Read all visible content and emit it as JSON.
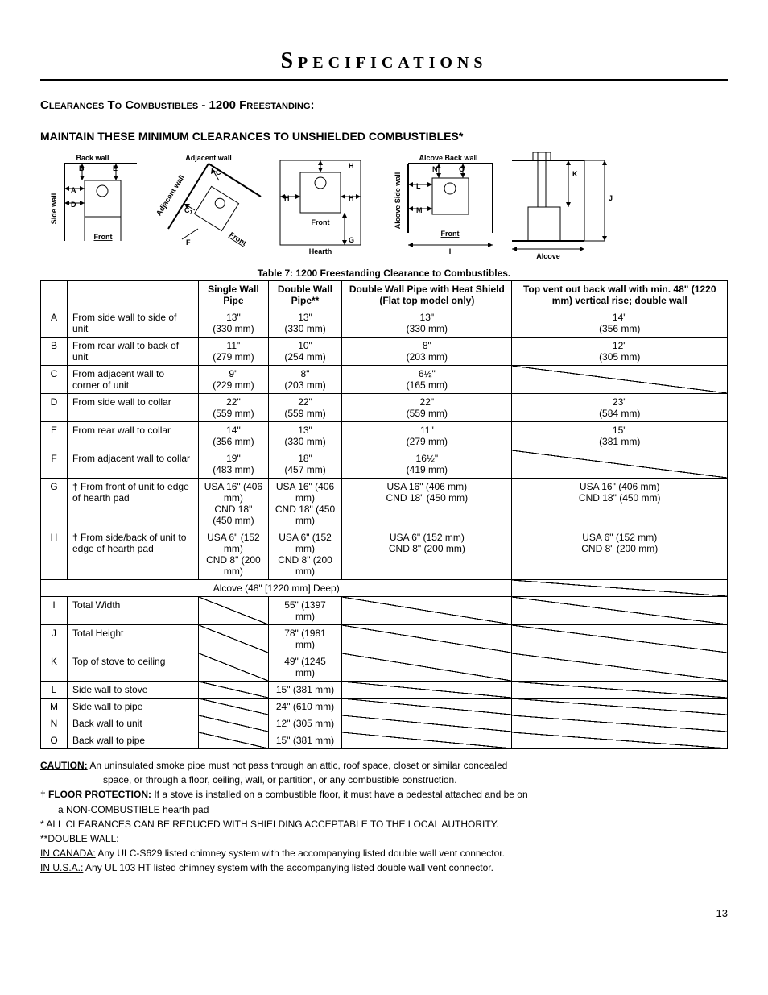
{
  "page": {
    "title": "Specifications",
    "number": "13"
  },
  "headings": {
    "section": "Clearances To Combustibles - 1200 Freestanding:",
    "sub": "MAINTAIN THESE MINIMUM CLEARANCES TO UNSHIELDED COMBUSTIBLES*"
  },
  "diagram_labels": {
    "d1": {
      "top": "Back wall",
      "side": "Side wall",
      "front": "Front",
      "A": "A",
      "B": "B",
      "D": "D",
      "E": "E"
    },
    "d2": {
      "top": "Adjacent wall",
      "adj": "Adjacent wall",
      "front": "Front",
      "C": "C",
      "C1": "C₁",
      "F": "F"
    },
    "d3": {
      "H": "H",
      "front": "Front",
      "hearth": "Hearth",
      "G": "G"
    },
    "d4": {
      "top": "Alcove Back wall",
      "side": "Alcove Side wall",
      "front": "Front",
      "N": "N",
      "O": "O",
      "L": "L",
      "M": "M",
      "I": "I"
    },
    "d5": {
      "alcove": "Alcove",
      "K": "K",
      "J": "J"
    }
  },
  "table": {
    "caption": "Table 7: 1200 Freestanding Clearance to Combustibles.",
    "headers": [
      "",
      "",
      "Single Wall Pipe",
      "Double Wall Pipe**",
      "Double Wall Pipe with Heat Shield (Flat top model only)",
      "Top vent out back wall with min. 48\" (1220 mm) vertical rise; double wall"
    ],
    "rows": [
      {
        "key": "A",
        "label": "From side wall to side of unit",
        "c": [
          "13\"\n(330 mm)",
          "13\"\n(330 mm)",
          "13\"\n(330 mm)",
          "14\"\n(356 mm)"
        ]
      },
      {
        "key": "B",
        "label": "From rear wall to back of unit",
        "c": [
          "11\"\n(279 mm)",
          "10\"\n(254 mm)",
          "8\"\n(203 mm)",
          "12\"\n(305 mm)"
        ]
      },
      {
        "key": "C",
        "label": "From adjacent wall to corner of unit",
        "c": [
          "9\"\n(229 mm)",
          "8\"\n(203 mm)",
          "6½\"\n(165 mm)",
          "DIAG"
        ]
      },
      {
        "key": "D",
        "label": "From side wall to collar",
        "c": [
          "22\"\n(559 mm)",
          "22\"\n(559 mm)",
          "22\"\n(559 mm)",
          "23\"\n(584 mm)"
        ]
      },
      {
        "key": "E",
        "label": "From rear wall to collar",
        "c": [
          "14\"\n(356 mm)",
          "13\"\n(330 mm)",
          "11\"\n(279 mm)",
          "15\"\n(381 mm)"
        ]
      },
      {
        "key": "F",
        "label": "From adjacent wall to collar",
        "c": [
          "19\"\n(483 mm)",
          "18\"\n(457 mm)",
          "16½\"\n(419 mm)",
          "DIAG"
        ]
      },
      {
        "key": "G",
        "label": "† From front of unit to edge of hearth pad",
        "c": [
          "USA 16\" (406 mm)\nCND 18\" (450 mm)",
          "USA 16\" (406 mm)\nCND 18\" (450 mm)",
          "USA 16\" (406 mm)\nCND 18\" (450 mm)",
          "USA 16\" (406 mm)\nCND 18\" (450 mm)"
        ]
      },
      {
        "key": "H",
        "label": "† From side/back of unit to edge of hearth pad",
        "c": [
          "USA 6\" (152 mm)\nCND 8\" (200 mm)",
          "USA 6\" (152 mm)\nCND 8\" (200 mm)",
          "USA 6\" (152 mm)\nCND 8\" (200 mm)",
          "USA 6\" (152 mm)\nCND 8\" (200 mm)"
        ]
      }
    ],
    "alcove_header": "Alcove (48\" [1220 mm] Deep)",
    "alcove_rows": [
      {
        "key": "I",
        "label": "Total Width",
        "c": [
          "DIAG",
          "55\" (1397 mm)",
          "DIAG",
          "DIAG"
        ]
      },
      {
        "key": "J",
        "label": "Total Height",
        "c": [
          "DIAG",
          "78\" (1981 mm)",
          "DIAG",
          "DIAG"
        ]
      },
      {
        "key": "K",
        "label": "Top of stove to ceiling",
        "c": [
          "DIAG",
          "49\" (1245 mm)",
          "DIAG",
          "DIAG"
        ]
      },
      {
        "key": "L",
        "label": "Side wall to stove",
        "c": [
          "DIAG",
          "15\" (381 mm)",
          "DIAG",
          "DIAG"
        ]
      },
      {
        "key": "M",
        "label": "Side wall to pipe",
        "c": [
          "DIAG",
          "24\" (610 mm)",
          "DIAG",
          "DIAG"
        ]
      },
      {
        "key": "N",
        "label": "Back wall to unit",
        "c": [
          "DIAG",
          "12\" (305 mm)",
          "DIAG",
          "DIAG"
        ]
      },
      {
        "key": "O",
        "label": "Back wall to pipe",
        "c": [
          "DIAG",
          "15\" (381 mm)",
          "DIAG",
          "DIAG"
        ]
      }
    ]
  },
  "notes": {
    "caution_label": "CAUTION:",
    "caution_1": " An uninsulated smoke pipe must not pass through an attic, roof space, closet or similar concealed",
    "caution_2": "space, or through a floor, ceiling, wall, or partition, or any combustible construction.",
    "floor_label": "FLOOR PROTECTION:",
    "floor_pre": "† ",
    "floor_1": " If a stove is installed on a combustible floor, it must have a pedestal attached and be on",
    "floor_2": "a NON-COMBUSTIBLE hearth pad",
    "star": "*  ALL CLEARANCES CAN BE REDUCED WITH SHIELDING ACCEPTABLE TO THE LOCAL AUTHORITY.",
    "dwall": "**DOUBLE WALL:",
    "canada_label": "IN CANADA:",
    "canada": "  Any ULC-S629 listed chimney system with the accompanying listed double wall vent connector.",
    "usa_label": "IN U.S.A.:",
    "usa": " Any UL 103 HT listed chimney system with the accompanying listed double wall vent connector."
  }
}
